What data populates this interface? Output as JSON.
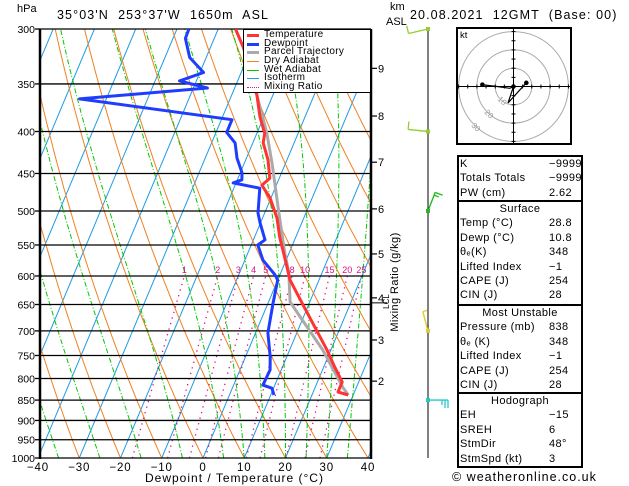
{
  "header": {
    "pressure_unit": "hPa",
    "location_title": "35°03'N  253°37'W  1650m  ASL",
    "km_label": "km",
    "asl_label": "ASL",
    "date_title": "20.08.2021  12GMT  (Base: 00)"
  },
  "chart_data": {
    "type": "line",
    "subtype": "skew-T log-p",
    "title": "35°03'N  253°37'W  1650m  ASL",
    "xlabel": "Dewpoint / Temperature (°C)",
    "ylabel": "hPa",
    "y2label": "Mixing Ratio (g/kg)",
    "y3label": "km ASL",
    "xlim": [
      -40,
      40
    ],
    "ylim": [
      1000,
      300
    ],
    "yscale": "log",
    "grid": true,
    "x_ticks": [
      -40,
      -30,
      -20,
      -10,
      0,
      10,
      20,
      30,
      40
    ],
    "x_tick_labels": [
      "−40",
      "−30",
      "−20",
      "−10",
      "0",
      "10",
      "20",
      "30",
      "40"
    ],
    "y_ticks": [
      300,
      350,
      400,
      450,
      500,
      550,
      600,
      650,
      700,
      750,
      800,
      850,
      900,
      950,
      1000
    ],
    "y_tick_labels": [
      "300",
      "350",
      "400",
      "450",
      "500",
      "550",
      "600",
      "650",
      "700",
      "750",
      "800",
      "850",
      "900",
      "950",
      "1000"
    ],
    "legend": {
      "position": "top-right",
      "entries": [
        {
          "label": "Temperature",
          "color": "#ff3333",
          "style": "thick"
        },
        {
          "label": "Dewpoint",
          "color": "#1f3dff",
          "style": "thick"
        },
        {
          "label": "Parcel Trajectory",
          "color": "#aaaaaa",
          "style": "thick"
        },
        {
          "label": "Dry Adiabat",
          "color": "#f08020",
          "style": "thin"
        },
        {
          "label": "Wet Adiabat",
          "color": "#00c800",
          "style": "thin"
        },
        {
          "label": "Isotherm",
          "color": "#1e9be6",
          "style": "thin"
        },
        {
          "label": "Mixing Ratio",
          "color": "#e0108a",
          "style": "dotted"
        }
      ]
    },
    "series": [
      {
        "name": "Temperature",
        "color": "#ff3333",
        "points_p_t": [
          [
            838,
            28.8
          ],
          [
            831,
            26.0
          ],
          [
            808,
            26.0
          ],
          [
            775,
            22.7
          ],
          [
            739,
            19.1
          ],
          [
            647,
            8.2
          ],
          [
            607,
            3.0
          ],
          [
            558,
            -1.8
          ],
          [
            538,
            -3.9
          ],
          [
            510,
            -6.5
          ],
          [
            482,
            -10.2
          ],
          [
            465,
            -13.5
          ],
          [
            456,
            -12.3
          ],
          [
            433,
            -14.6
          ],
          [
            413,
            -17.5
          ],
          [
            402,
            -18.1
          ],
          [
            384,
            -20.9
          ],
          [
            361,
            -23.9
          ],
          [
            316,
            -32.0
          ],
          [
            300,
            -35.8
          ]
        ]
      },
      {
        "name": "Dewpoint",
        "color": "#1f3dff",
        "points_p_t": [
          [
            838,
            10.8
          ],
          [
            822,
            9.6
          ],
          [
            815,
            7.1
          ],
          [
            781,
            7.3
          ],
          [
            753,
            6.0
          ],
          [
            704,
            3.0
          ],
          [
            647,
            1.2
          ],
          [
            607,
            0.0
          ],
          [
            598,
            -1.2
          ],
          [
            574,
            -5.6
          ],
          [
            550,
            -8.4
          ],
          [
            542,
            -7.2
          ],
          [
            517,
            -10.1
          ],
          [
            503,
            -11.6
          ],
          [
            469,
            -13.7
          ],
          [
            462,
            -20.7
          ],
          [
            458,
            -18.9
          ],
          [
            449,
            -19.6
          ],
          [
            431,
            -22.3
          ],
          [
            413,
            -24.3
          ],
          [
            401,
            -27.4
          ],
          [
            387,
            -27.4
          ],
          [
            365,
            -66.5
          ],
          [
            354,
            -36.6
          ],
          [
            347,
            -44.1
          ],
          [
            339,
            -39.1
          ],
          [
            325,
            -44.0
          ],
          [
            308,
            -47.0
          ],
          [
            300,
            -47.1
          ]
        ]
      },
      {
        "name": "Parcel Trajectory",
        "color": "#aaaaaa",
        "points_p_t": [
          [
            838,
            28.8
          ],
          [
            820,
            26.7
          ],
          [
            739,
            18.1
          ],
          [
            673,
            9.2
          ],
          [
            645,
            5.2
          ],
          [
            594,
            1.9
          ],
          [
            563,
            -1.0
          ],
          [
            494,
            -7.4
          ],
          [
            437,
            -13.3
          ],
          [
            402,
            -17.6
          ],
          [
            361,
            -23.9
          ],
          [
            330,
            -28.5
          ]
        ]
      }
    ],
    "background": {
      "colors": {
        "isotherm": "#1e9be6",
        "dry_adiabat": "#f08020",
        "wet_adiabat": "#00c800",
        "mixing_ratio": "#e0108a",
        "pressure_line": "#000000"
      },
      "isotherms_c": {
        "from": -130,
        "to": 40,
        "step": 10
      },
      "dry_adiabats_c": {
        "from": -40,
        "to": 110,
        "step": 10
      },
      "wet_adiabats_c": [
        -35,
        -25,
        -15,
        -5,
        5,
        10,
        15,
        20,
        25,
        30,
        35
      ],
      "mixing_ratio_gkg": [
        1,
        2,
        3,
        4,
        5,
        8,
        10,
        15,
        20,
        25
      ],
      "mixing_ratio_top_hpa": 600
    },
    "km_ticks": [
      {
        "label": "9",
        "p": 335
      },
      {
        "label": "8",
        "p": 383
      },
      {
        "label": "7",
        "p": 436
      },
      {
        "label": "6",
        "p": 497
      },
      {
        "label": "5",
        "p": 564
      },
      {
        "label": "4",
        "p": 638
      },
      {
        "label": "3",
        "p": 718
      },
      {
        "label": "2",
        "p": 806
      }
    ],
    "lcl": {
      "label": "LCL",
      "p": 647
    },
    "wind_barbs": [
      {
        "p": 300,
        "from_deg": 257,
        "speed_kt": 10,
        "color": "#99cc33"
      },
      {
        "p": 400,
        "from_deg": 276,
        "speed_kt": 10,
        "color": "#99cc33"
      },
      {
        "p": 500,
        "from_deg": 21,
        "speed_kt": 15,
        "color": "#22bb22"
      },
      {
        "p": 700,
        "from_deg": 345,
        "speed_kt": 5,
        "color": "#ddcc33"
      },
      {
        "p": 850,
        "from_deg": 90,
        "speed_kt": 25,
        "color": "#22c8c8"
      }
    ],
    "hodograph": {
      "unit_label": "kt",
      "rings_kt": [
        10,
        20,
        30
      ],
      "points_kt": [
        [
          -17,
          1
        ],
        [
          -9,
          0
        ],
        [
          -2,
          -1
        ],
        [
          0,
          0
        ],
        [
          -3,
          -9
        ],
        [
          7,
          2
        ]
      ]
    }
  },
  "indices": {
    "general": [
      {
        "label": "K",
        "value": "−9999"
      },
      {
        "label": "Totals Totals",
        "value": "−9999"
      },
      {
        "label": "PW (cm)",
        "value": "2.62"
      }
    ],
    "surface": {
      "title": "Surface",
      "rows": [
        {
          "label": "Temp (°C)",
          "value": "28.8"
        },
        {
          "label": "Dewp (°C)",
          "value": "10.8"
        },
        {
          "label": "θₑ(K)",
          "value": "348"
        },
        {
          "label": "Lifted Index",
          "value": "−1"
        },
        {
          "label": "CAPE (J)",
          "value": "254"
        },
        {
          "label": "CIN (J)",
          "value": "28"
        }
      ]
    },
    "most_unstable": {
      "title": "Most Unstable",
      "rows": [
        {
          "label": "Pressure (mb)",
          "value": "838"
        },
        {
          "label": "θₑ (K)",
          "value": "348"
        },
        {
          "label": "Lifted Index",
          "value": "−1"
        },
        {
          "label": "CAPE (J)",
          "value": "254"
        },
        {
          "label": "CIN (J)",
          "value": "28"
        }
      ]
    },
    "hodograph": {
      "title": "Hodograph",
      "rows": [
        {
          "label": "EH",
          "value": "−15"
        },
        {
          "label": "SREH",
          "value": "6"
        },
        {
          "label": "StmDir",
          "value": "48°"
        },
        {
          "label": "StmSpd (kt)",
          "value": "3"
        }
      ]
    }
  },
  "footer": "© weatheronline.co.uk"
}
